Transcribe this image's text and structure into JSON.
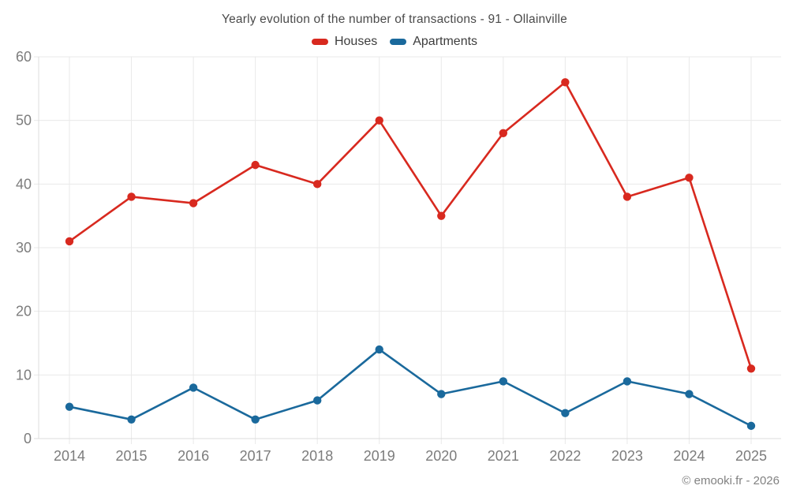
{
  "chart_data": {
    "type": "line",
    "title": "Yearly evolution of the number of transactions - 91 - Ollainville",
    "categories": [
      "2014",
      "2015",
      "2016",
      "2017",
      "2018",
      "2019",
      "2020",
      "2021",
      "2022",
      "2023",
      "2024",
      "2025"
    ],
    "series": [
      {
        "name": "Houses",
        "color": "#d8291f",
        "values": [
          31,
          38,
          37,
          43,
          40,
          50,
          35,
          48,
          56,
          38,
          41,
          11
        ]
      },
      {
        "name": "Apartments",
        "color": "#1a699c",
        "values": [
          5,
          3,
          8,
          3,
          6,
          14,
          7,
          9,
          4,
          9,
          7,
          2
        ]
      }
    ],
    "xlabel": "",
    "ylabel": "",
    "ylim": [
      0,
      60
    ],
    "y_ticks": [
      0,
      10,
      20,
      30,
      40,
      50,
      60
    ],
    "grid": true,
    "legend_position": "top",
    "footer": "© emooki.fr - 2026",
    "colors": {
      "background": "#ffffff",
      "grid": "#e9e9e9",
      "axis": "#dcdcdc",
      "title_text": "#4a4a4a",
      "legend_text": "#3d3d3d",
      "axis_label_text": "#7c7c7c",
      "footer_text": "#828282"
    }
  }
}
